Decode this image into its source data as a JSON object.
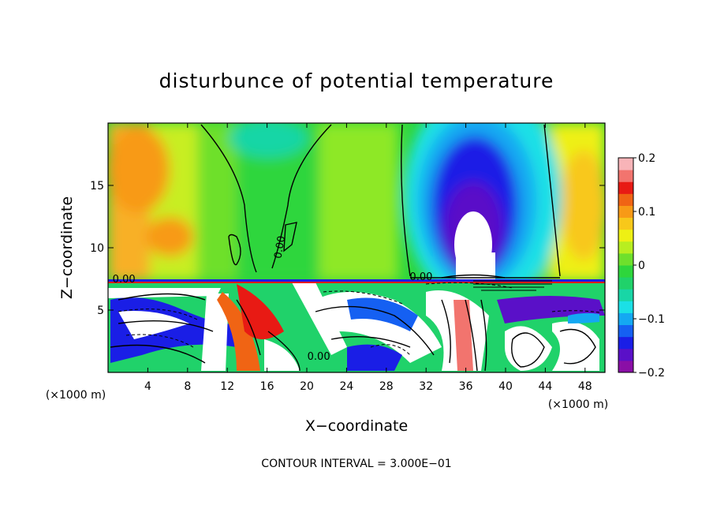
{
  "chart_data": {
    "type": "heatmap",
    "title": "disturbunce of potential temperature",
    "xlabel": "X−coordinate",
    "ylabel": "Z−coordinate",
    "x_unit_left": "(×1000 m)",
    "x_unit_right": "(×1000 m)",
    "xlim": [
      0,
      50
    ],
    "ylim": [
      0,
      20
    ],
    "x_ticks": [
      4,
      8,
      12,
      16,
      20,
      24,
      28,
      32,
      36,
      40,
      44,
      48
    ],
    "y_ticks": [
      5,
      10,
      15
    ],
    "colorbar": {
      "range": [
        -0.2,
        0.2
      ],
      "ticks": [
        {
          "value": 0.2,
          "label": "0.2"
        },
        {
          "value": 0.1,
          "label": "0.1"
        },
        {
          "value": 0,
          "label": "0"
        },
        {
          "value": -0.1,
          "label": "−0.1"
        },
        {
          "value": -0.2,
          "label": "−0.2"
        }
      ],
      "colors": [
        "#8a0fa6",
        "#5a10c8",
        "#1a1ee6",
        "#1560f2",
        "#14a8f2",
        "#1be0e6",
        "#18d6a6",
        "#20d26a",
        "#2ed63c",
        "#6ee02c",
        "#b8ee20",
        "#eef014",
        "#f8c81a",
        "#f89a16",
        "#f06414",
        "#e81a14",
        "#f2746e",
        "#f8b4b8"
      ]
    },
    "contour_labels": [
      {
        "x": 1.6,
        "z": 7.2,
        "text": "0.00"
      },
      {
        "x": 17.6,
        "z": 10.0,
        "text": "0.00"
      },
      {
        "x": 31.5,
        "z": 7.4,
        "text": "0.00"
      },
      {
        "x": 21.2,
        "z": 1.0,
        "text": "0.00"
      }
    ],
    "contour_interval_text": "CONTOUR INTERVAL =  3.000E−01"
  }
}
